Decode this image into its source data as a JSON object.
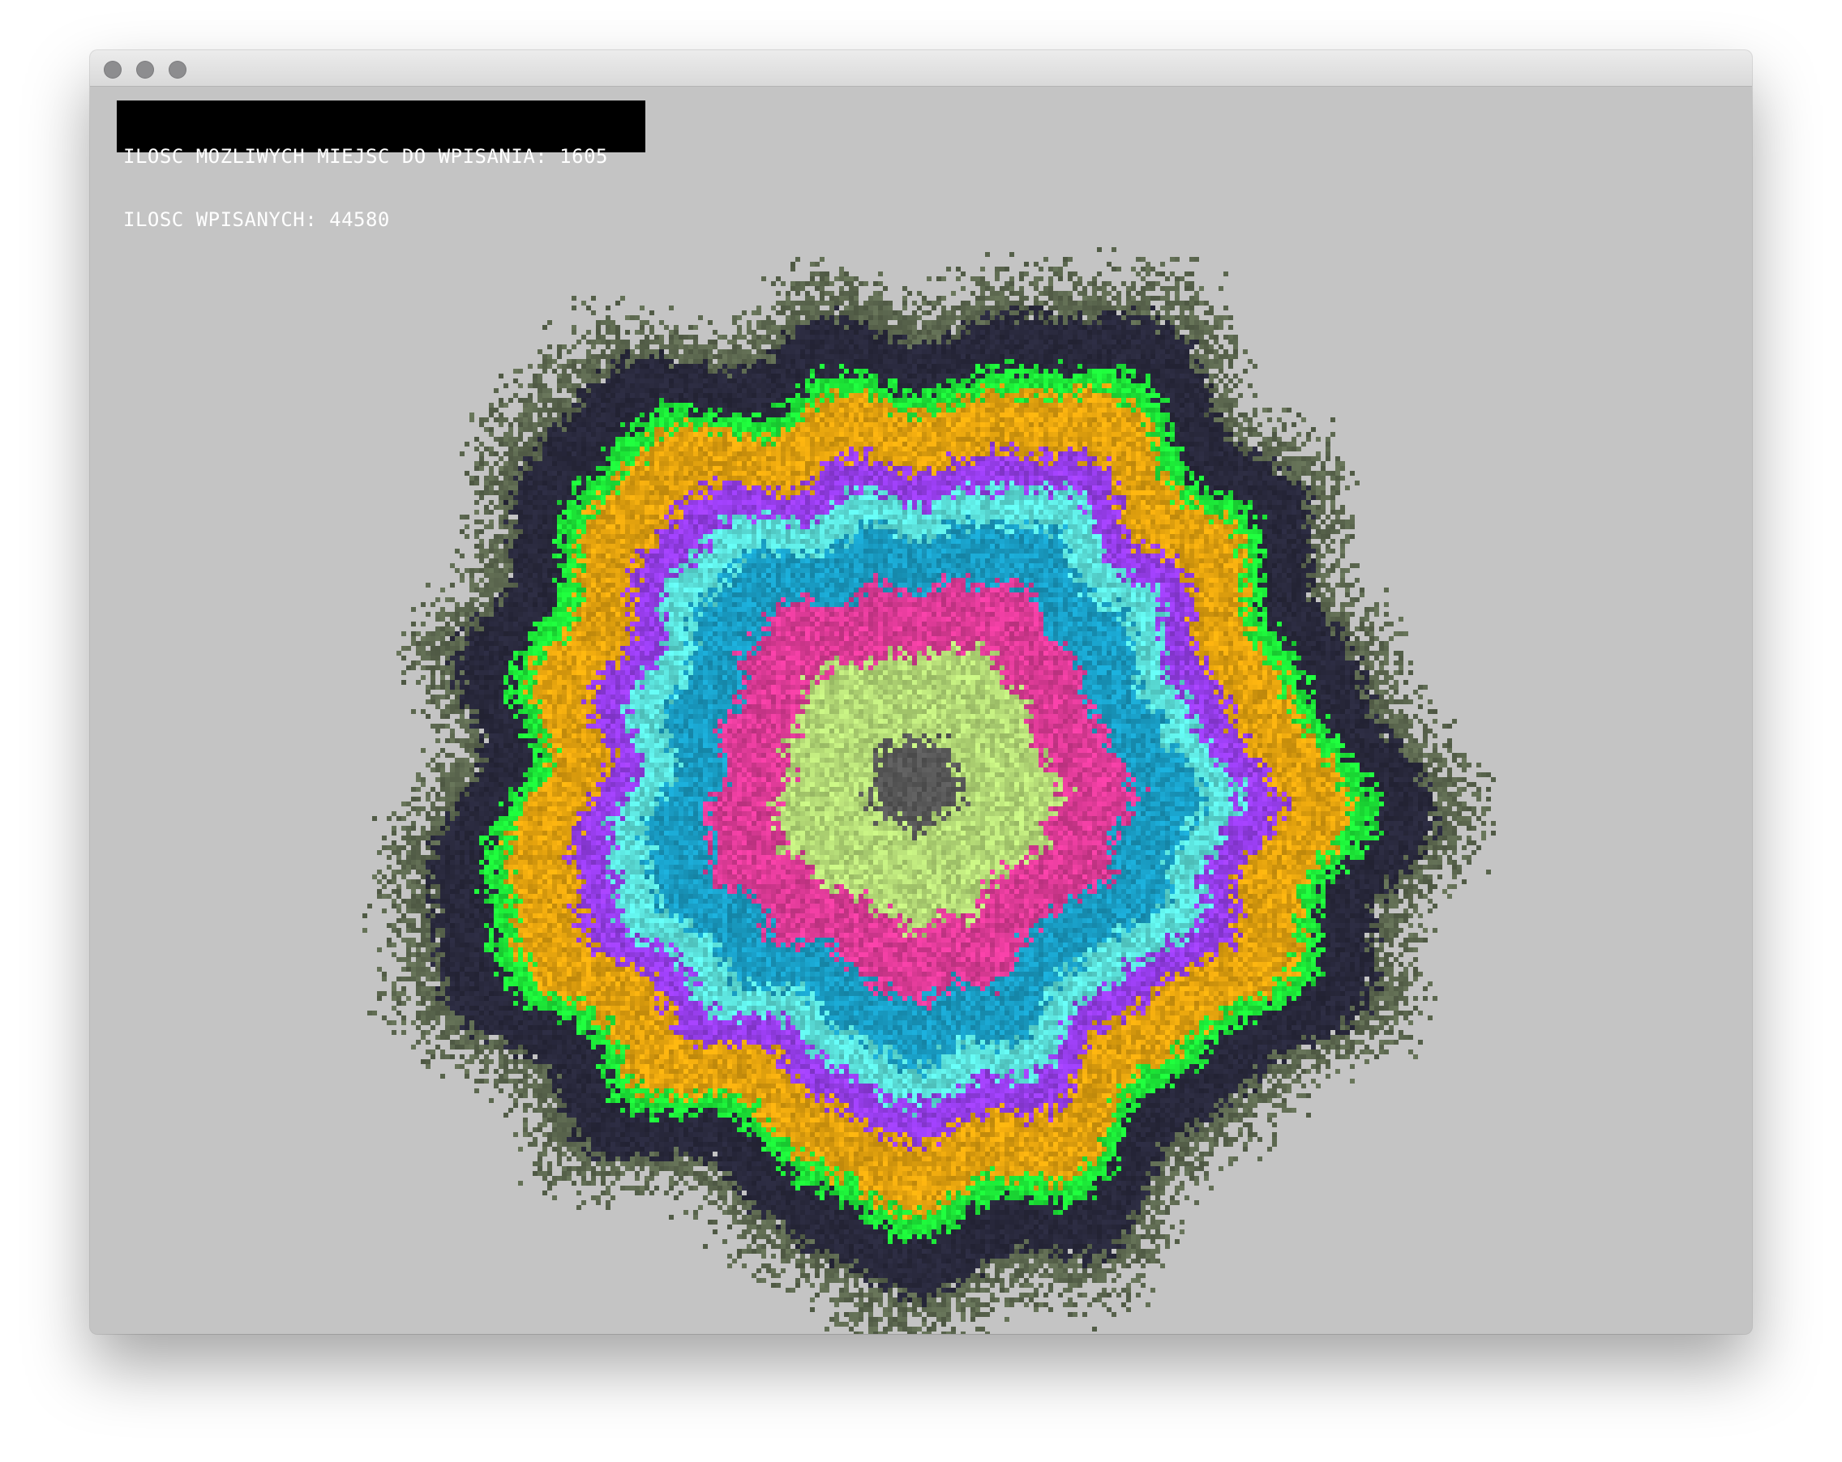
{
  "window": {
    "buttons": [
      "close",
      "minimize",
      "maximize"
    ]
  },
  "stats": {
    "possible_label": "ILOSC MOZLIWYCH MIEJSC DO WPISANIA: 1605",
    "written_label": "ILOSC WPISANYCH: 44580"
  },
  "colors": {
    "background": "#c4c4c4",
    "rings": [
      "#5a5a5a",
      "#b9e07a",
      "#e23c9a",
      "#1aa0c8",
      "#5ee6e0",
      "#9a3ff0",
      "#e8a60f",
      "#1ef03a",
      "#2a2a3e",
      "#5f6b52"
    ]
  }
}
